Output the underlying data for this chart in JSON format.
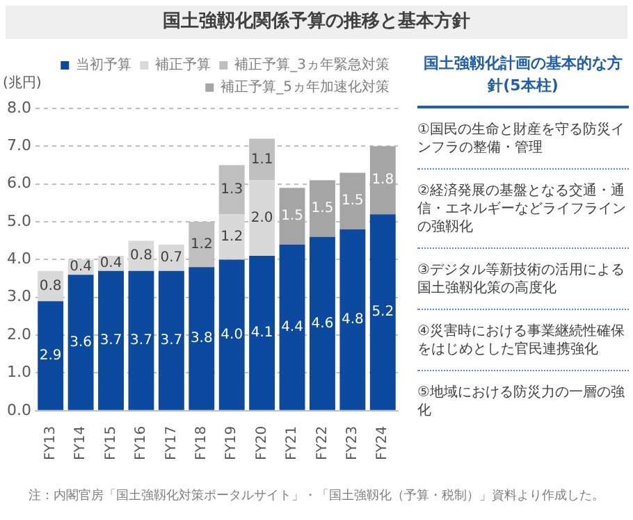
{
  "chart_data": [
    {
      "type": "bar",
      "title": "国土強靱化関係予算の推移と基本方針",
      "ylabel": "(兆円)",
      "stacked": true,
      "categories": [
        "FY13",
        "FY14",
        "FY15",
        "FY16",
        "FY17",
        "FY18",
        "FY19",
        "FY20",
        "FY21",
        "FY22",
        "FY23",
        "FY24"
      ],
      "series": [
        {
          "name": "当初予算",
          "color": "#0b4a9e",
          "values": [
            2.9,
            3.6,
            3.7,
            3.7,
            3.7,
            3.8,
            4.0,
            4.1,
            4.4,
            4.6,
            4.8,
            5.2
          ],
          "value_labels": [
            "2.9",
            "3.6",
            "3.7",
            "3.7",
            "3.7",
            "3.8",
            "4.0",
            "4.1",
            "4.4",
            "4.6",
            "4.8",
            "5.2"
          ]
        },
        {
          "name": "補正予算",
          "color": "#d9d9d9",
          "values": [
            0.8,
            0.4,
            0.4,
            0.8,
            0.7,
            null,
            1.2,
            2.0,
            null,
            null,
            null,
            null
          ],
          "value_labels": [
            "0.8",
            "0.4",
            "0.4",
            "0.8",
            "0.7",
            null,
            "1.2",
            "2.0",
            null,
            null,
            null,
            null
          ]
        },
        {
          "name": "補正予算_3ヵ年緊急対策",
          "color": "#bfbfbf",
          "values": [
            null,
            null,
            null,
            null,
            null,
            1.2,
            1.3,
            1.1,
            null,
            null,
            null,
            null
          ],
          "value_labels": [
            null,
            null,
            null,
            null,
            null,
            "1.2",
            "1.3",
            "1.1",
            null,
            null,
            null,
            null
          ]
        },
        {
          "name": "補正予算_5ヵ年加速化対策",
          "color": "#a5a5a5",
          "values": [
            null,
            null,
            null,
            null,
            null,
            null,
            null,
            null,
            1.5,
            1.5,
            1.5,
            1.8
          ],
          "value_labels": [
            null,
            null,
            null,
            null,
            null,
            null,
            null,
            null,
            "1.5",
            "1.5",
            "1.5",
            "1.8"
          ]
        }
      ],
      "ylim": [
        0,
        8
      ],
      "yticks": [
        {
          "value": 0,
          "label": "0.0"
        },
        {
          "value": 1,
          "label": "1.0"
        },
        {
          "value": 2,
          "label": "2.0"
        },
        {
          "value": 3,
          "label": "3.0"
        },
        {
          "value": 4,
          "label": "4.0"
        },
        {
          "value": 5,
          "label": "5.0"
        },
        {
          "value": 6,
          "label": "6.0"
        },
        {
          "value": 7,
          "label": "7.0"
        },
        {
          "value": 8,
          "label": "8.0"
        }
      ],
      "grid": "y",
      "legend": "top",
      "annotations": [
        "注：内閣官房「国土強靱化対策ポータルサイト」・「国土強靱化（予算・税制）」資料より作成した。"
      ]
    },
    {
      "type": "other",
      "title": "国土強靱化計画の基本的な方針(5本柱)",
      "annotations": [
        "①国民の生命と財産を守る防災インフラの整備・管理",
        "②経済発展の基盤となる交通・通信・エネルギーなどライフラインの強靱化",
        "③デジタル等新技術の活用による国土強靱化策の高度化",
        "④災害時における事業継続性確保をはじめとした官民連携強化",
        "⑤地域における防災力の一層の強化"
      ]
    }
  ]
}
